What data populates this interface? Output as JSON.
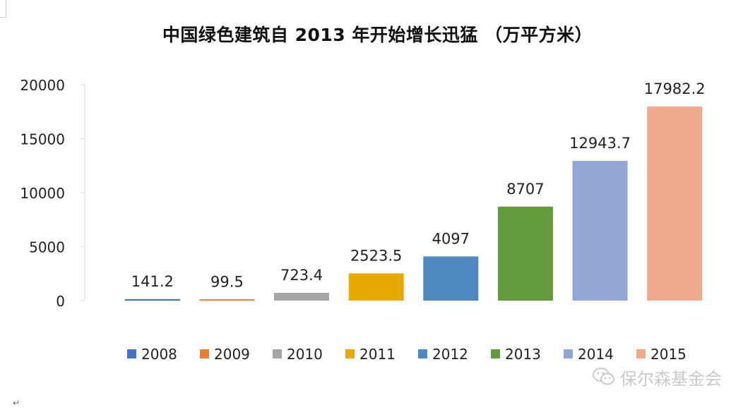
{
  "chart_data": {
    "type": "bar",
    "title": "中国绿色建筑自 2013 年开始增长迅猛 （万平方米）",
    "categories": [
      "2008",
      "2009",
      "2010",
      "2011",
      "2012",
      "2013",
      "2014",
      "2015"
    ],
    "values": [
      141.2,
      99.5,
      723.4,
      2523.5,
      4097,
      8707,
      12943.7,
      17982.2
    ],
    "data_labels": [
      "141.2",
      "99.5",
      "723.4",
      "2523.5",
      "4097",
      "8707",
      "12943.7",
      "17982.2"
    ],
    "colors": [
      "#4472c4",
      "#ed7d31",
      "#a5a5a5",
      "#e8aa00",
      "#5088c0",
      "#639b3c",
      "#92a6d6",
      "#f0a98c"
    ],
    "ylim": [
      0,
      20000
    ],
    "yticks": [
      "0",
      "5000",
      "10000",
      "15000",
      "20000"
    ],
    "legend": "bottom",
    "legend_entries": [
      "2008",
      "2009",
      "2010",
      "2011",
      "2012",
      "2013",
      "2014",
      "2015"
    ],
    "grid": false,
    "xlabel": "",
    "ylabel": ""
  },
  "watermark": {
    "text": "保尔森基金会",
    "icon": "wechat-icon"
  },
  "return_mark": "↵"
}
